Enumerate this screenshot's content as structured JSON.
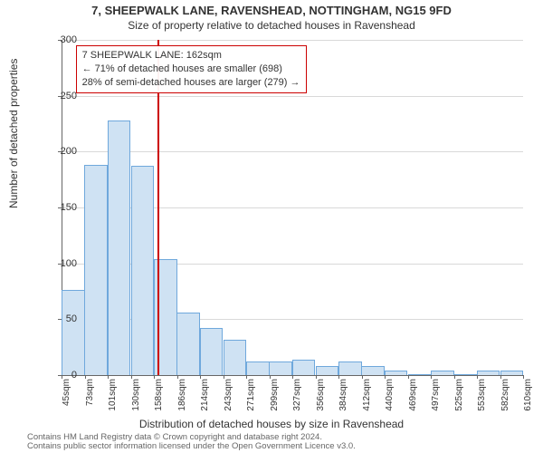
{
  "title": "7, SHEEPWALK LANE, RAVENSHEAD, NOTTINGHAM, NG15 9FD",
  "subtitle": "Size of property relative to detached houses in Ravenshead",
  "ylabel": "Number of detached properties",
  "xlabel": "Distribution of detached houses by size in Ravenshead",
  "chart": {
    "type": "histogram",
    "background_color": "#ffffff",
    "grid_color": "#d9d9d9",
    "axis_color": "#666666",
    "bar_fill": "#cfe2f3",
    "bar_stroke": "#6fa8dc",
    "bar_stroke_width": 1,
    "ref_line_color": "#cc0000",
    "ref_line_x": 162,
    "callout_border": "#cc0000",
    "ylim": [
      0,
      300
    ],
    "ytick_step": 50,
    "xlim": [
      45,
      610
    ],
    "xtick_step": 28.3,
    "xticks": [
      "45sqm",
      "73sqm",
      "101sqm",
      "130sqm",
      "158sqm",
      "186sqm",
      "214sqm",
      "243sqm",
      "271sqm",
      "299sqm",
      "327sqm",
      "356sqm",
      "384sqm",
      "412sqm",
      "440sqm",
      "469sqm",
      "497sqm",
      "525sqm",
      "553sqm",
      "582sqm",
      "610sqm"
    ],
    "bars": [
      {
        "x": 45,
        "v": 76
      },
      {
        "x": 73,
        "v": 188
      },
      {
        "x": 101,
        "v": 228
      },
      {
        "x": 130,
        "v": 187
      },
      {
        "x": 158,
        "v": 104
      },
      {
        "x": 186,
        "v": 56
      },
      {
        "x": 214,
        "v": 42
      },
      {
        "x": 243,
        "v": 32
      },
      {
        "x": 271,
        "v": 12
      },
      {
        "x": 299,
        "v": 12
      },
      {
        "x": 327,
        "v": 14
      },
      {
        "x": 356,
        "v": 8
      },
      {
        "x": 384,
        "v": 12
      },
      {
        "x": 412,
        "v": 8
      },
      {
        "x": 440,
        "v": 4
      },
      {
        "x": 469,
        "v": 0
      },
      {
        "x": 497,
        "v": 4
      },
      {
        "x": 525,
        "v": 0
      },
      {
        "x": 553,
        "v": 4
      },
      {
        "x": 582,
        "v": 4
      }
    ]
  },
  "callout": {
    "line1": "7 SHEEPWALK LANE: 162sqm",
    "line2": "← 71% of detached houses are smaller (698)",
    "line3": "28% of semi-detached houses are larger (279) →"
  },
  "license": {
    "l1": "Contains HM Land Registry data © Crown copyright and database right 2024.",
    "l2": "Contains public sector information licensed under the Open Government Licence v3.0."
  },
  "fonts": {
    "title_size": 13,
    "subtitle_size": 12,
    "axis_label_size": 12,
    "tick_size": 11,
    "xtick_size": 10,
    "callout_size": 11,
    "license_size": 9.5
  }
}
